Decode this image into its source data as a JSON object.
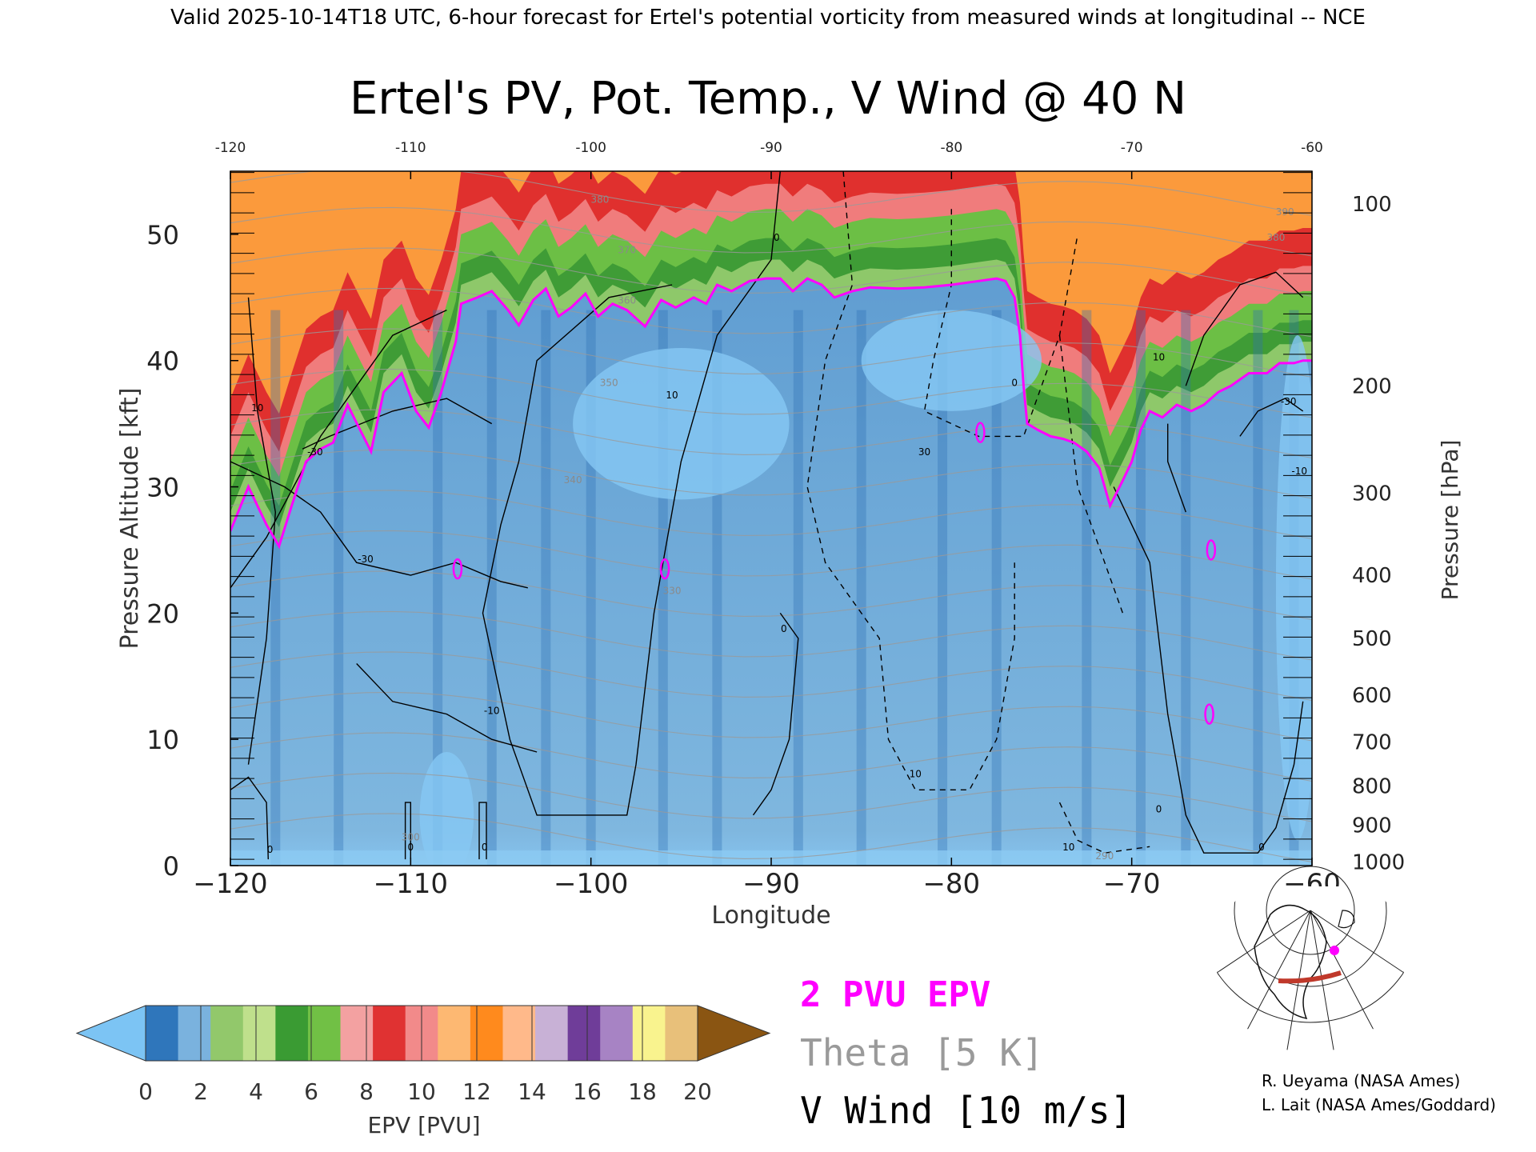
{
  "header": "Valid 2025-10-14T18 UTC, 6-hour forecast for Ertel's potential vorticity from measured winds at longitudinal -- NCE",
  "credits": [
    "R. Ueyama (NASA Ames)",
    "L. Lait (NASA Ames/Goddard)"
  ],
  "colors": {
    "pv_contour": "#ff00ff",
    "theta": "#9a9a9a",
    "vwind": "#000000",
    "colorbar": [
      "#7cc4f4",
      "#2f76bb",
      "#7ab2de",
      "#92c86b",
      "#bfe08c",
      "#3a9b33",
      "#71c045",
      "#f3a1a1",
      "#e03232",
      "#f28a8a",
      "#fdb872",
      "#ff8a1d",
      "#ffb98a",
      "#c8b1d6",
      "#6f3d99",
      "#a783c4",
      "#f9f38e",
      "#e8c07a",
      "#8a5512"
    ]
  },
  "chart_data": {
    "type": "heatmap",
    "title": "Ertel's PV, Pot. Temp., V Wind @ 40 N",
    "xlabel": "Longitude",
    "ylabel_left": "Pressure Altitude [kft]",
    "ylabel_right": "Pressure [hPa]",
    "xlim": [
      -120,
      -60
    ],
    "ylim": [
      0,
      55
    ],
    "x_ticks": [
      -120,
      -110,
      -100,
      -90,
      -80,
      -70,
      -60
    ],
    "y_ticks": [
      0,
      10,
      20,
      30,
      40,
      50
    ],
    "right_ticks": [
      {
        "label": "100",
        "kft": 52.4
      },
      {
        "label": "200",
        "kft": 38.0
      },
      {
        "label": "300",
        "kft": 29.5
      },
      {
        "label": "400",
        "kft": 23.0
      },
      {
        "label": "500",
        "kft": 18.0
      },
      {
        "label": "600",
        "kft": 13.5
      },
      {
        "label": "700",
        "kft": 9.8
      },
      {
        "label": "800",
        "kft": 6.3
      },
      {
        "label": "900",
        "kft": 3.2
      },
      {
        "label": "1000",
        "kft": 0.3
      }
    ],
    "pv_2pvu_boundary": [
      [
        -120,
        26.5
      ],
      [
        -119,
        30
      ],
      [
        -118,
        27
      ],
      [
        -117.3,
        25.3
      ],
      [
        -116.6,
        28.5
      ],
      [
        -115.8,
        32
      ],
      [
        -115,
        33
      ],
      [
        -114.3,
        33.5
      ],
      [
        -113.5,
        36.5
      ],
      [
        -112.8,
        34.5
      ],
      [
        -112.2,
        32.8
      ],
      [
        -111.5,
        37.5
      ],
      [
        -110.5,
        39
      ],
      [
        -109.7,
        36
      ],
      [
        -109,
        34.7
      ],
      [
        -108.3,
        37.5
      ],
      [
        -107.5,
        41.5
      ],
      [
        -107.2,
        44.5
      ],
      [
        -106.3,
        45
      ],
      [
        -105.5,
        45.5
      ],
      [
        -104.6,
        44
      ],
      [
        -104,
        42.8
      ],
      [
        -103.2,
        44.8
      ],
      [
        -102.5,
        45.7
      ],
      [
        -101.8,
        43.5
      ],
      [
        -101.1,
        44.2
      ],
      [
        -100.3,
        45.3
      ],
      [
        -99.6,
        43.5
      ],
      [
        -98.8,
        44.5
      ],
      [
        -98,
        44
      ],
      [
        -97,
        42.7
      ],
      [
        -96.1,
        44.8
      ],
      [
        -95.3,
        44.2
      ],
      [
        -94.3,
        45
      ],
      [
        -93.6,
        44.5
      ],
      [
        -93,
        46
      ],
      [
        -92.2,
        45.5
      ],
      [
        -91.2,
        46.3
      ],
      [
        -90.3,
        46.5
      ],
      [
        -89.5,
        46.5
      ],
      [
        -88.8,
        45.5
      ],
      [
        -88,
        46.5
      ],
      [
        -87.2,
        46
      ],
      [
        -86.5,
        45
      ],
      [
        -85.5,
        45.5
      ],
      [
        -84.5,
        45.8
      ],
      [
        -83,
        45.7
      ],
      [
        -81.5,
        45.8
      ],
      [
        -80,
        46
      ],
      [
        -78.5,
        46.3
      ],
      [
        -77.5,
        46.5
      ],
      [
        -77,
        46.3
      ],
      [
        -76.5,
        45
      ],
      [
        -76.2,
        42
      ],
      [
        -76,
        38
      ],
      [
        -75.8,
        35
      ],
      [
        -75.2,
        34.5
      ],
      [
        -74.5,
        34
      ],
      [
        -73.8,
        33.8
      ],
      [
        -73.2,
        33.5
      ],
      [
        -72.5,
        32.8
      ],
      [
        -71.8,
        31.5
      ],
      [
        -71.2,
        28.5
      ],
      [
        -70.5,
        30.5
      ],
      [
        -70,
        32
      ],
      [
        -69.5,
        34.5
      ],
      [
        -69,
        36
      ],
      [
        -68.3,
        35.5
      ],
      [
        -67.5,
        36.5
      ],
      [
        -66.7,
        36
      ],
      [
        -66,
        36.5
      ],
      [
        -65.2,
        37.5
      ],
      [
        -64.5,
        38
      ],
      [
        -63.5,
        39
      ],
      [
        -62.5,
        39
      ],
      [
        -61.8,
        39.8
      ],
      [
        -61,
        39.8
      ],
      [
        -60.5,
        40
      ],
      [
        -60,
        40
      ]
    ],
    "pv_isolated_contours": [
      {
        "lon": -107.4,
        "kft": 23.5
      },
      {
        "lon": -95.9,
        "kft": 23.5
      },
      {
        "lon": -78.4,
        "kft": 34.3
      },
      {
        "lon": -65.6,
        "kft": 25.0
      },
      {
        "lon": -65.7,
        "kft": 12.0
      }
    ],
    "theta_labels": [
      {
        "text": "330",
        "lon": -95.5,
        "kft": 21.5
      },
      {
        "text": "340",
        "lon": -101,
        "kft": 30.3
      },
      {
        "text": "350",
        "lon": -99,
        "kft": 38.0
      },
      {
        "text": "360",
        "lon": -98,
        "kft": 44.5
      },
      {
        "text": "370",
        "lon": -98,
        "kft": 48.5
      },
      {
        "text": "380",
        "lon": -99.5,
        "kft": 52.5
      },
      {
        "text": "300",
        "lon": -110,
        "kft": 2.0
      },
      {
        "text": "290",
        "lon": -71.5,
        "kft": 0.5
      },
      {
        "text": "380",
        "lon": -62,
        "kft": 49.5
      },
      {
        "text": "390",
        "lon": -61.5,
        "kft": 51.5
      }
    ],
    "vwind_labels": [
      {
        "text": "-30",
        "lon": -115.3,
        "kft": 32.5
      },
      {
        "text": "-30",
        "lon": -112.5,
        "kft": 24.0
      },
      {
        "text": "-10",
        "lon": -105.5,
        "kft": 12.0
      },
      {
        "text": "10",
        "lon": -95.5,
        "kft": 37.0
      },
      {
        "text": "0",
        "lon": -89.7,
        "kft": 49.5
      },
      {
        "text": "0",
        "lon": -89.3,
        "kft": 18.5
      },
      {
        "text": "0",
        "lon": -117.8,
        "kft": 1.0
      },
      {
        "text": "0",
        "lon": -110,
        "kft": 1.2
      },
      {
        "text": "0",
        "lon": -105.9,
        "kft": 1.2
      },
      {
        "text": "30",
        "lon": -81.5,
        "kft": 32.5
      },
      {
        "text": "10",
        "lon": -82,
        "kft": 7.0
      },
      {
        "text": "10",
        "lon": -73.5,
        "kft": 1.2
      },
      {
        "text": "10",
        "lon": -68.5,
        "kft": 40.0
      },
      {
        "text": "0",
        "lon": -76.5,
        "kft": 38.0
      },
      {
        "text": "-30",
        "lon": -61.3,
        "kft": 36.5
      },
      {
        "text": "-10",
        "lon": -60.7,
        "kft": 31.0
      },
      {
        "text": "0",
        "lon": -62.8,
        "kft": 1.2
      },
      {
        "text": "0",
        "lon": -68.5,
        "kft": 4.2
      },
      {
        "text": "10",
        "lon": -118.5,
        "kft": 36.0
      }
    ]
  },
  "colorbar": {
    "label": "EPV [PVU]",
    "tick_labels": [
      "0",
      "2",
      "4",
      "6",
      "8",
      "10",
      "12",
      "14",
      "16",
      "18",
      "20"
    ]
  },
  "legend": {
    "pv": "2 PVU EPV",
    "theta": "Theta [5 K]",
    "vwind": "V Wind [10 m/s]"
  },
  "inset_map": {
    "icon": "globe-map-icon"
  }
}
